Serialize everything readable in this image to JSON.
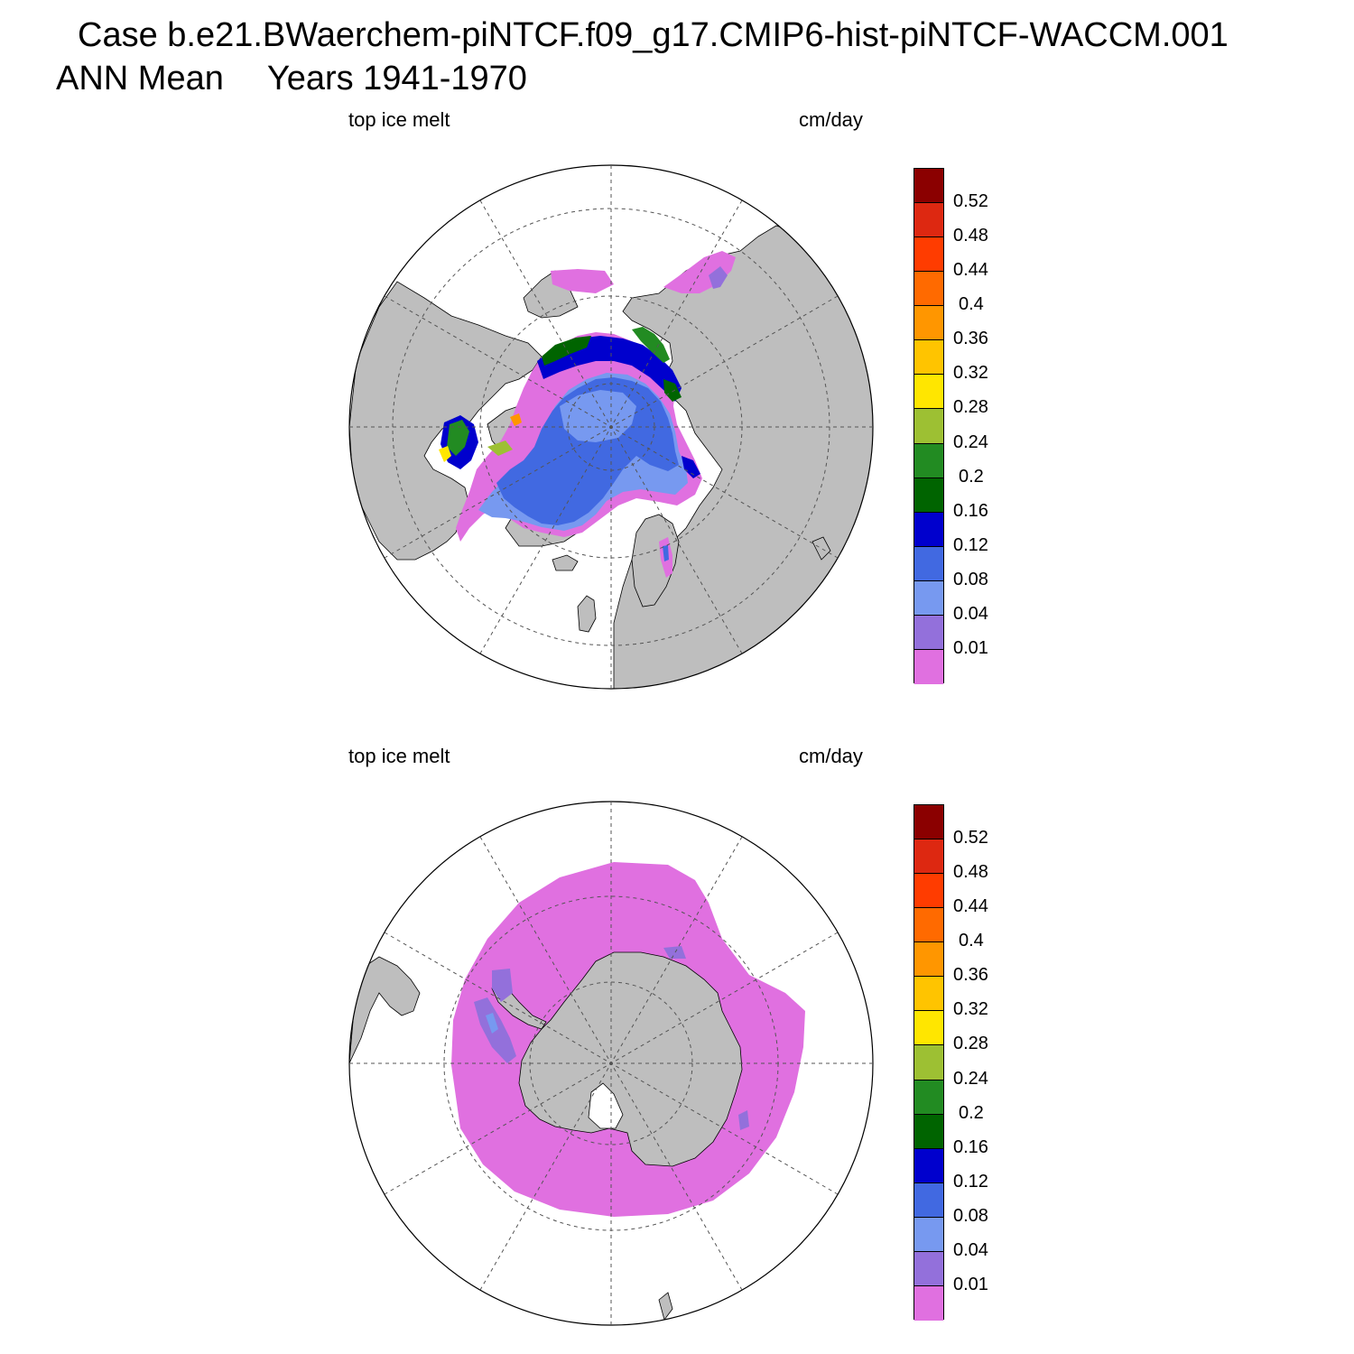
{
  "header": {
    "case_line": "Case b.e21.BWaerchem-piNTCF.f09_g17.CMIP6-hist-piNTCF-WACCM.001",
    "season": "ANN Mean",
    "years": "Years 1941-1970"
  },
  "panels": [
    {
      "id": "north",
      "variable": "top ice melt",
      "units": "cm/day",
      "hemisphere": "Northern Hemisphere polar stereographic"
    },
    {
      "id": "south",
      "variable": "top ice melt",
      "units": "cm/day",
      "hemisphere": "Southern Hemisphere polar stereographic"
    }
  ],
  "colorbar": {
    "labels": [
      "0.52",
      "0.48",
      "0.44",
      "0.4",
      "0.36",
      "0.32",
      "0.28",
      "0.24",
      "0.2",
      "0.16",
      "0.12",
      "0.08",
      "0.04",
      "0.01"
    ],
    "colors": [
      "#8b0000",
      "#dd2811",
      "#ff3c00",
      "#ff6a00",
      "#ff9600",
      "#ffc400",
      "#ffe600",
      "#9dc033",
      "#228b22",
      "#006400",
      "#0000cd",
      "#4169e1",
      "#7799f0",
      "#9370db",
      "#e070e0"
    ]
  },
  "map_colors": {
    "land": "#bebebe",
    "ocean": "#ffffff"
  }
}
